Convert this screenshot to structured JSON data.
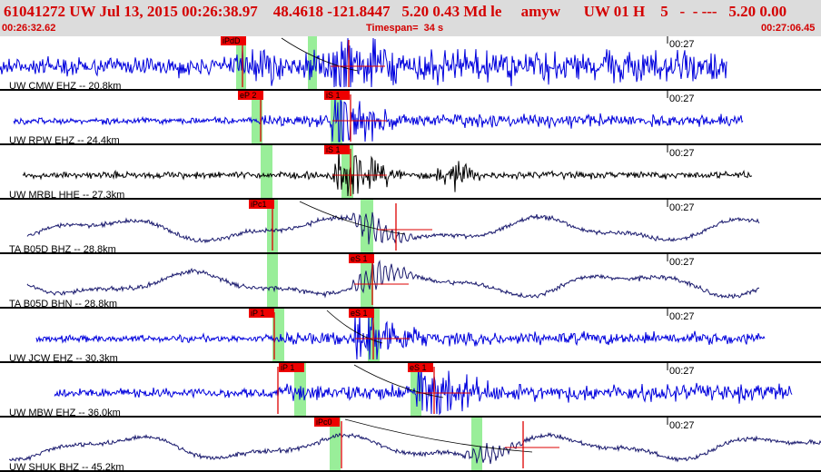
{
  "header": {
    "title": "61041272 UW Jul 13, 2015 00:26:38.97    48.4618 -121.8447   5.20 0.43 Md le     amyw      UW 01 H    5   -  - ---   5.20 0.00",
    "start_time": "00:26:32.62",
    "timespan": "Timespan=  34 s",
    "end_time": "00:27:06.45"
  },
  "traces": [
    {
      "label": "UW CMW EHZ -- 20.8km",
      "tick": "00:27",
      "color": "#0000dd",
      "picks": [
        "iPdD",
        ""
      ]
    },
    {
      "label": "UW RPW EHZ -- 24.4km",
      "tick": "00:27",
      "color": "#0000dd",
      "picks": [
        "eP 2",
        "iS 1"
      ]
    },
    {
      "label": "UW MRBL HHE -- 27.3km",
      "tick": "00:27",
      "color": "#000000",
      "picks": [
        "",
        "iS 1"
      ]
    },
    {
      "label": "TA B05D BHZ -- 28.8km",
      "tick": "00:27",
      "color": "#1a1a6e",
      "picks": [
        "iPc1",
        ""
      ]
    },
    {
      "label": "TA B05D BHN -- 28.8km",
      "tick": "00:27",
      "color": "#1a1a6e",
      "picks": [
        "",
        "eS 1"
      ]
    },
    {
      "label": "UW JCW EHZ -- 30.3km",
      "tick": "00:27",
      "color": "#0000dd",
      "picks": [
        "iP 1",
        "eS 1"
      ]
    },
    {
      "label": "UW MBW EHZ -- 36.0km",
      "tick": "00:27",
      "color": "#0000dd",
      "picks": [
        "iP 1",
        "eS 1"
      ]
    },
    {
      "label": "UW SHUK BHZ -- 45.2km",
      "tick": "00:27",
      "color": "#1a1a6e",
      "picks": [
        "iPc0",
        ""
      ]
    }
  ],
  "colors": {
    "header_bg": "#dcdcdc",
    "header_text": "#d40000",
    "pick_box": "#ee0000",
    "pick_window": "#99ee99",
    "cursor_line": "#dd0000"
  }
}
